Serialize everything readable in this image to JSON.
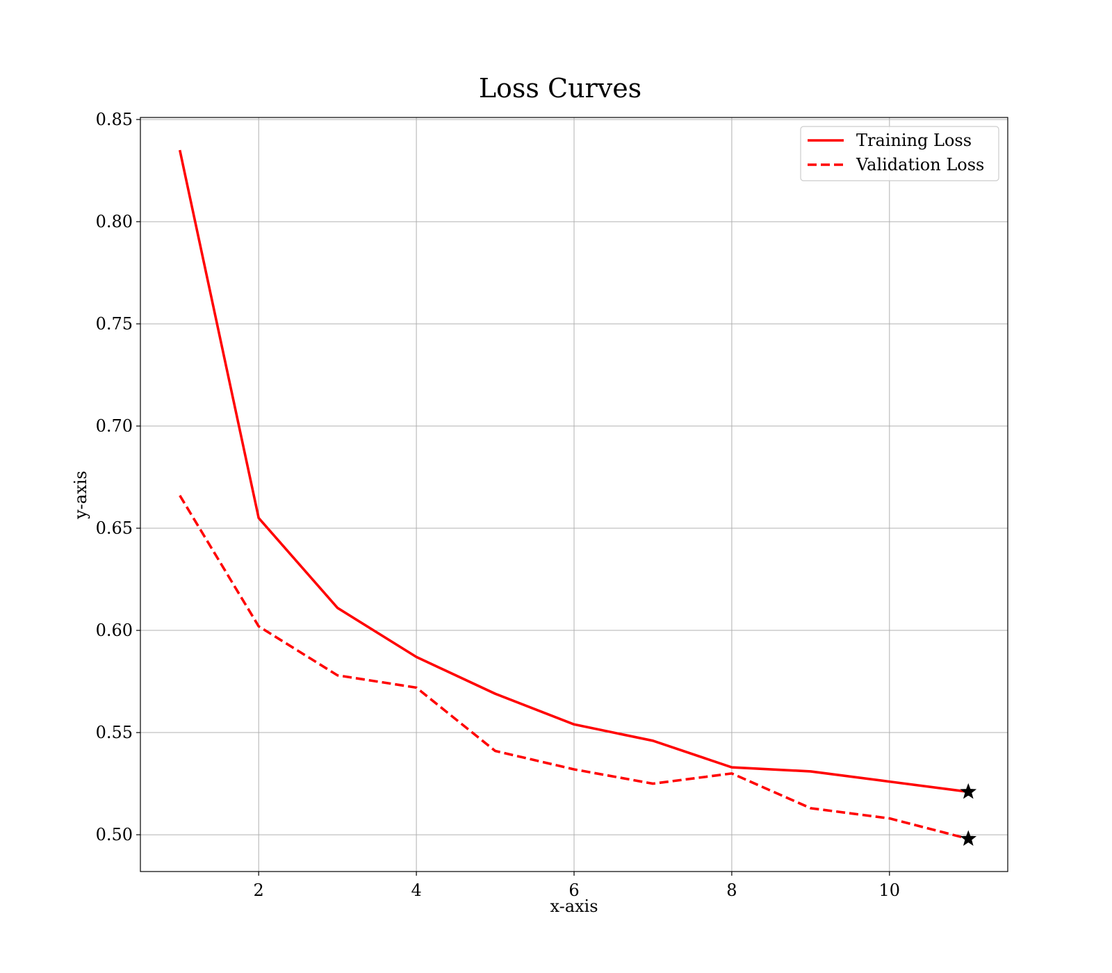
{
  "chart_data": {
    "type": "line",
    "title": "Loss Curves",
    "xlabel": "x-axis",
    "ylabel": "y-axis",
    "xlim": [
      0.5,
      11.5
    ],
    "ylim": [
      0.482,
      0.851
    ],
    "xticks": [
      2,
      4,
      6,
      8,
      10
    ],
    "xtick_labels": [
      "2",
      "4",
      "6",
      "8",
      "10"
    ],
    "yticks": [
      0.5,
      0.55,
      0.6,
      0.65,
      0.7,
      0.75,
      0.8,
      0.85
    ],
    "ytick_labels": [
      "0.50",
      "0.55",
      "0.60",
      "0.65",
      "0.70",
      "0.75",
      "0.80",
      "0.85"
    ],
    "grid": true,
    "legend_position": "top-right",
    "x": [
      1,
      2,
      3,
      4,
      5,
      6,
      7,
      8,
      9,
      10,
      11
    ],
    "series": [
      {
        "name": "Training Loss",
        "style": "solid",
        "color": "#ff0000",
        "values": [
          0.835,
          0.655,
          0.611,
          0.587,
          0.569,
          0.554,
          0.546,
          0.533,
          0.531,
          0.526,
          0.521
        ]
      },
      {
        "name": "Validation Loss",
        "style": "dashed",
        "color": "#ff0000",
        "values": [
          0.666,
          0.602,
          0.578,
          0.572,
          0.541,
          0.532,
          0.525,
          0.53,
          0.513,
          0.508,
          0.498
        ]
      }
    ],
    "markers": [
      {
        "series": "Training Loss",
        "x": 11,
        "y": 0.521,
        "symbol": "star",
        "color": "#000000"
      },
      {
        "series": "Validation Loss",
        "x": 11,
        "y": 0.498,
        "symbol": "star",
        "color": "#000000"
      }
    ]
  }
}
